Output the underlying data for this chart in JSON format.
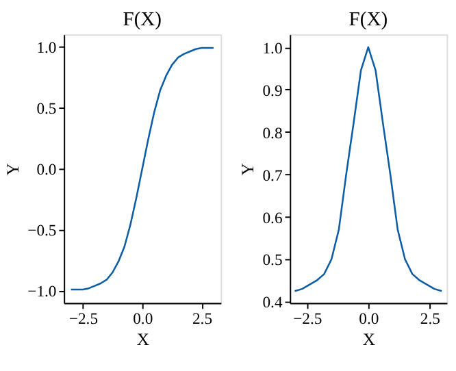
{
  "chart_data": [
    {
      "type": "line",
      "title": "F(X)",
      "xlabel": "X",
      "ylabel": "Y",
      "xlim": [
        -3.3,
        3.3
      ],
      "xticks": [
        {
          "value": -2.5,
          "label": "−2.5"
        },
        {
          "value": 0,
          "label": "0.0"
        },
        {
          "value": 2.5,
          "label": "2.5"
        }
      ],
      "ylim": [
        -1.1,
        1.1
      ],
      "yticks": [
        {
          "value": -1,
          "label": "−1.0"
        },
        {
          "value": -0.5,
          "label": "−0.5"
        },
        {
          "value": 0,
          "label": "0.0"
        },
        {
          "value": 0.5,
          "label": "0.5"
        },
        {
          "value": 1,
          "label": "1.0"
        }
      ],
      "grid": false,
      "marker": "none",
      "line_style": "solid",
      "x": [
        -3.0,
        -2.75,
        -2.5,
        -2.25,
        -2.0,
        -1.75,
        -1.5,
        -1.25,
        -1.0,
        -0.75,
        -0.5,
        -0.25,
        0.0,
        0.25,
        0.5,
        0.75,
        1.0,
        1.25,
        1.5,
        1.75,
        2.0,
        2.25,
        2.5,
        2.75,
        3.0
      ],
      "series": [
        {
          "color": "#0c5da5",
          "values": [
            -0.99,
            -0.99,
            -0.99,
            -0.98,
            -0.96,
            -0.94,
            -0.91,
            -0.85,
            -0.76,
            -0.64,
            -0.46,
            -0.24,
            0.0,
            0.24,
            0.46,
            0.64,
            0.76,
            0.85,
            0.91,
            0.94,
            0.96,
            0.98,
            0.99,
            0.99,
            0.99
          ]
        }
      ]
    },
    {
      "type": "line",
      "title": "F(X)",
      "xlabel": "X",
      "ylabel": "Y",
      "xlim": [
        -3.2,
        3.2
      ],
      "xticks": [
        {
          "value": -2.5,
          "label": "−2.5"
        },
        {
          "value": 0,
          "label": "0.0"
        },
        {
          "value": 2.5,
          "label": "2.5"
        }
      ],
      "ylim": [
        0.397,
        1.03
      ],
      "yticks": [
        0.4,
        0.5,
        0.6,
        0.7,
        0.8,
        0.9,
        {
          "value": 1,
          "label": "1.0"
        }
      ],
      "grid": false,
      "marker": "none",
      "line_style": "solid",
      "x": [
        -3.0,
        -2.7,
        -2.4,
        -2.1,
        -1.8,
        -1.5,
        -1.2,
        -0.9,
        -0.6,
        -0.3,
        0.0,
        0.3,
        0.6,
        0.9,
        1.2,
        1.5,
        1.8,
        2.1,
        2.4,
        2.7,
        3.0
      ],
      "series": [
        {
          "color": "#0c5da5",
          "values": [
            0.425,
            0.43,
            0.44,
            0.45,
            0.465,
            0.5,
            0.57,
            0.7,
            0.82,
            0.945,
            1.0,
            0.945,
            0.82,
            0.7,
            0.57,
            0.5,
            0.465,
            0.45,
            0.44,
            0.43,
            0.425
          ]
        }
      ]
    }
  ]
}
